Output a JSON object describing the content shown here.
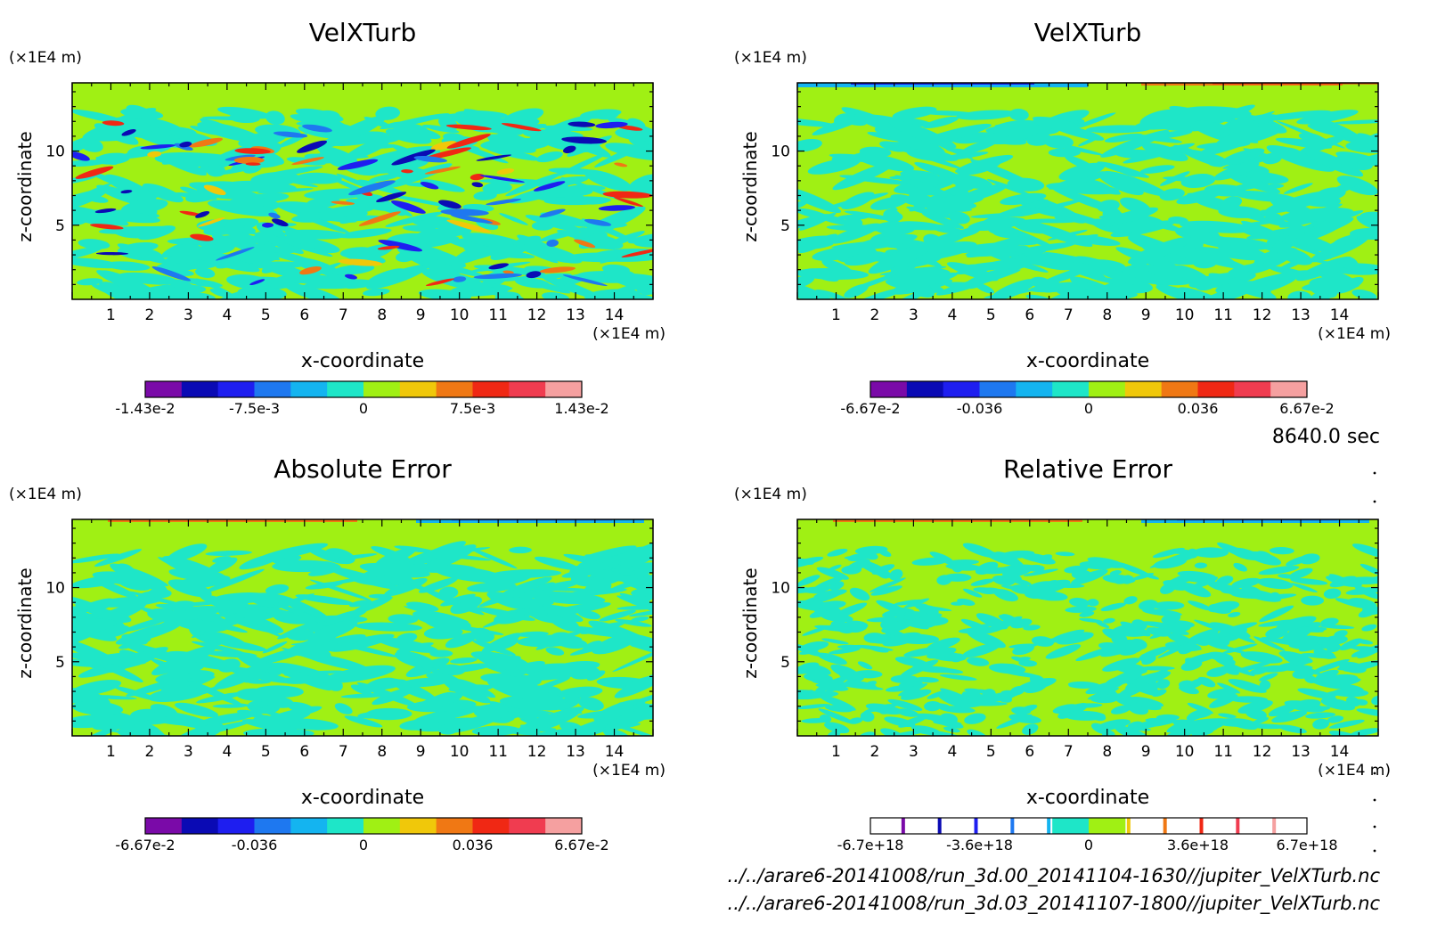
{
  "figure": {
    "time_label": "8640.0 sec",
    "files": [
      "../../arare6-20141008/run_3d.00_20141104-1630//jupiter_VelXTurb.nc",
      "../../arare6-20141008/run_3d.03_20141107-1800//jupiter_VelXTurb.nc"
    ],
    "palette": [
      "#7a0aa8",
      "#0a0ab4",
      "#1e1ef0",
      "#1e78f0",
      "#14b4f0",
      "#1ee6c8",
      "#a0f014",
      "#f0c80a",
      "#f07814",
      "#f02814",
      "#f03c50",
      "#f5a0a0"
    ]
  },
  "chart_data": [
    {
      "type": "heatmap",
      "title": "VelXTurb",
      "xlabel": "x-coordinate",
      "ylabel": "z-coordinate",
      "x_unit": "(×1E4 m)",
      "y_unit": "(×1E4 m)",
      "xlim": [
        0,
        15
      ],
      "ylim": [
        0,
        14.6
      ],
      "x_ticks": [
        "1",
        "2",
        "3",
        "4",
        "5",
        "6",
        "7",
        "8",
        "9",
        "10",
        "11",
        "12",
        "13",
        "14"
      ],
      "y_ticks": [
        "5",
        "10"
      ],
      "colorbar": {
        "levels": [
          -0.0143,
          0.0143
        ],
        "tick_labels": [
          "-1.43e-2",
          "-7.5e-3",
          "0",
          "7.5e-3",
          "1.43e-2"
        ],
        "mode": "filled"
      },
      "field": {
        "pattern": "strong",
        "top_band": "none",
        "noise": 1.0,
        "seed": 3
      }
    },
    {
      "type": "heatmap",
      "title": "VelXTurb",
      "xlabel": "x-coordinate",
      "ylabel": "z-coordinate",
      "x_unit": "(×1E4 m)",
      "y_unit": "(×1E4 m)",
      "xlim": [
        0,
        15
      ],
      "ylim": [
        0,
        14.6
      ],
      "x_ticks": [
        "1",
        "2",
        "3",
        "4",
        "5",
        "6",
        "7",
        "8",
        "9",
        "10",
        "11",
        "12",
        "13",
        "14"
      ],
      "y_ticks": [
        "5",
        "10"
      ],
      "colorbar": {
        "levels": [
          -0.0667,
          0.0667
        ],
        "tick_labels": [
          "-6.67e-2",
          "-0.036",
          "0",
          "0.036",
          "6.67e-2"
        ],
        "mode": "filled"
      },
      "field": {
        "pattern": "weak",
        "top_band": "blue-red",
        "noise": 1.0,
        "seed": 7
      }
    },
    {
      "type": "heatmap",
      "title": "Absolute Error",
      "xlabel": "x-coordinate",
      "ylabel": "z-coordinate",
      "x_unit": "(×1E4 m)",
      "y_unit": "(×1E4 m)",
      "xlim": [
        0,
        15
      ],
      "ylim": [
        0,
        14.6
      ],
      "x_ticks": [
        "1",
        "2",
        "3",
        "4",
        "5",
        "6",
        "7",
        "8",
        "9",
        "10",
        "11",
        "12",
        "13",
        "14"
      ],
      "y_ticks": [
        "5",
        "10"
      ],
      "colorbar": {
        "levels": [
          -0.0667,
          0.0667
        ],
        "tick_labels": [
          "-6.67e-2",
          "-0.036",
          "0",
          "0.036",
          "6.67e-2"
        ],
        "mode": "filled"
      },
      "field": {
        "pattern": "weak",
        "top_band": "red-blue",
        "noise": 1.2,
        "seed": 11
      }
    },
    {
      "type": "heatmap",
      "title": "Relative Error",
      "xlabel": "x-coordinate",
      "ylabel": "z-coordinate",
      "x_unit": "(×1E4 m)",
      "y_unit": "(×1E4 m)",
      "xlim": [
        0,
        15
      ],
      "ylim": [
        0,
        14.6
      ],
      "x_ticks": [
        "1",
        "2",
        "3",
        "4",
        "5",
        "6",
        "7",
        "8",
        "9",
        "10",
        "11",
        "12",
        "13",
        "14"
      ],
      "y_ticks": [
        "5",
        "10"
      ],
      "colorbar": {
        "levels": [
          -6.7e+18,
          6.7e+18
        ],
        "tick_labels": [
          "-6.7e+18",
          "-3.6e+18",
          "0",
          "3.6e+18",
          "6.7e+18"
        ],
        "mode": "lines"
      },
      "field": {
        "pattern": "fine",
        "top_band": "red-blue",
        "noise": 1.4,
        "seed": 19
      }
    }
  ]
}
